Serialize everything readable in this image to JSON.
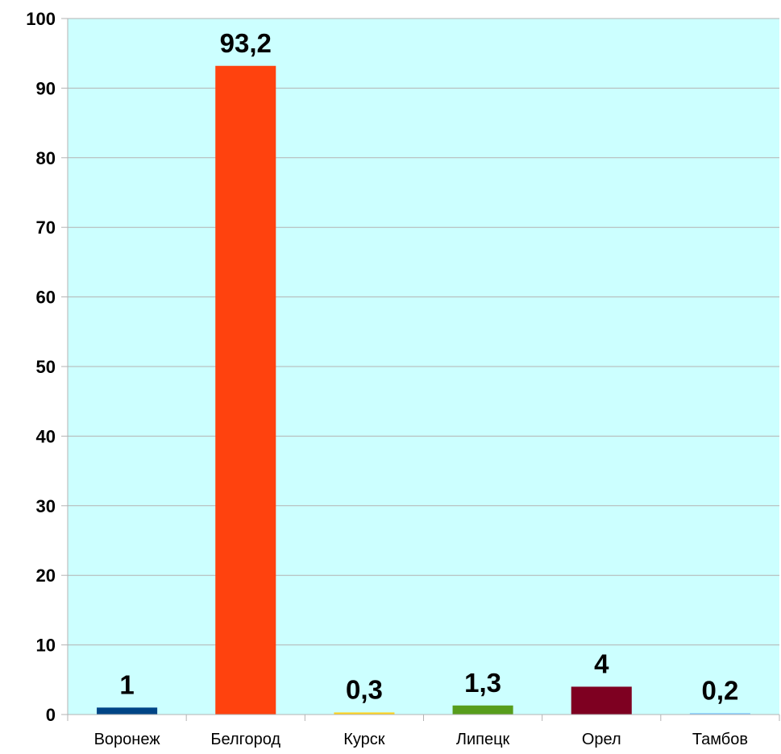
{
  "chart_data": {
    "type": "bar",
    "categories": [
      "Воронеж",
      "Белгород",
      "Курск",
      "Липецк",
      "Орел",
      "Тамбов"
    ],
    "values": [
      1,
      93.2,
      0.3,
      1.3,
      4,
      0.2
    ],
    "data_labels": [
      "1",
      "93,2",
      "0,3",
      "1,3",
      "4",
      "0,2"
    ],
    "bar_colors": [
      "#004586",
      "#ff420e",
      "#ffd320",
      "#579d1c",
      "#7e0021",
      "#83caff"
    ],
    "plot_background": "#ccffff",
    "ylim": [
      0,
      100
    ],
    "yticks": [
      0,
      10,
      20,
      30,
      40,
      50,
      60,
      70,
      80,
      90,
      100
    ],
    "grid": true,
    "legend": "none"
  }
}
